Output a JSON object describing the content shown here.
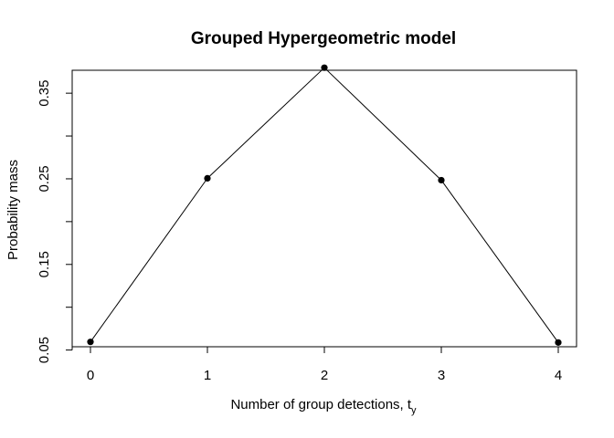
{
  "chart_data": {
    "type": "line",
    "title": "Grouped Hypergeometric model",
    "xlabel": "Number of group detections, t",
    "xlabel_subscript": "y",
    "ylabel": "Probability mass",
    "x": [
      0,
      1,
      2,
      3,
      4
    ],
    "y": [
      0.0595,
      0.2506,
      0.3798,
      0.2484,
      0.0588
    ],
    "xlim": [
      0,
      4
    ],
    "ylim": [
      0.05,
      0.385
    ],
    "x_ticks": [
      "0",
      "1",
      "2",
      "3",
      "4"
    ],
    "y_ticks": [
      0.05,
      0.1,
      0.15,
      0.2,
      0.25,
      0.3,
      0.35
    ],
    "y_tick_labels": [
      "0.05",
      "",
      "0.15",
      "",
      "0.25",
      "",
      "0.35"
    ],
    "line_color": "#000000",
    "point_color": "#000000",
    "grid": false,
    "legend": "none"
  }
}
